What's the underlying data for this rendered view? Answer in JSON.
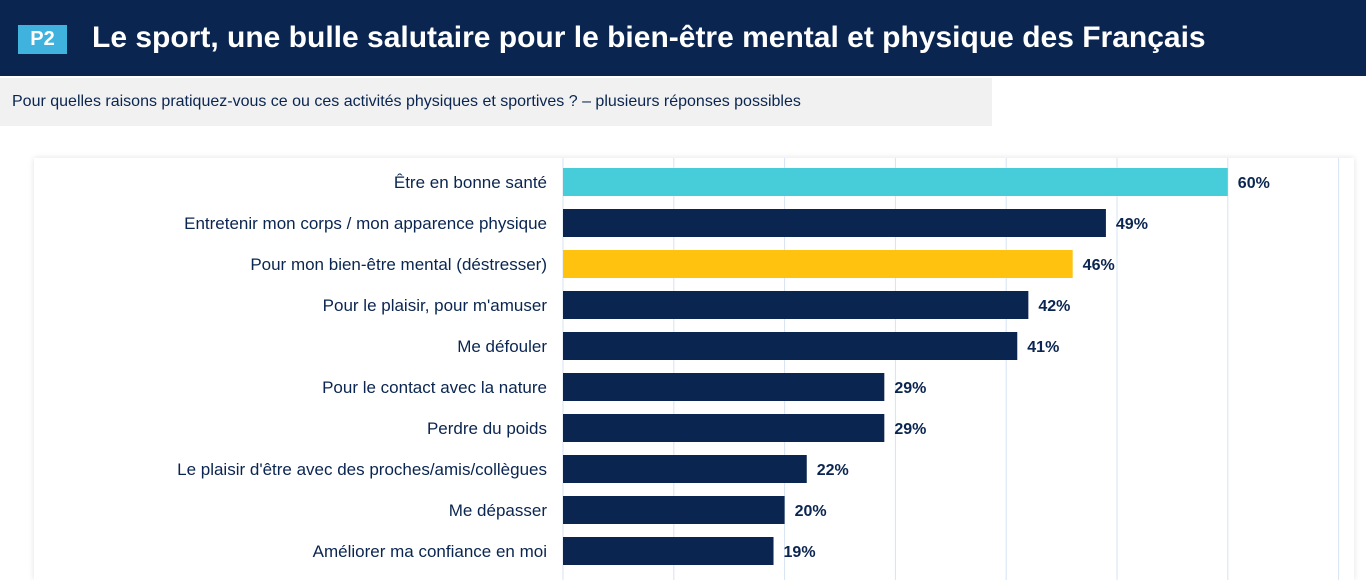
{
  "header": {
    "badge": "P2",
    "title": "Le sport, une bulle salutaire pour le bien-être mental et physique des Français"
  },
  "subtitle": "Pour quelles raisons pratiquez-vous ce ou ces activités physiques et sportives ? – plusieurs réponses possibles",
  "colors": {
    "header_bg": "#0a2550",
    "badge_bg": "#3fb3dd",
    "bar_default": "#0a2550",
    "bar_highlight_1": "#47cdd9",
    "bar_highlight_2": "#ffc20e",
    "gridline": "#d6e3f2"
  },
  "chart_data": {
    "type": "bar",
    "orientation": "horizontal",
    "unit": "%",
    "xlim": [
      0,
      70
    ],
    "grid": true,
    "categories": [
      "Être en bonne santé",
      "Entretenir mon corps / mon apparence physique",
      "Pour mon bien-être mental (déstresser)",
      "Pour le plaisir, pour m'amuser",
      "Me défouler",
      "Pour le contact avec la nature",
      "Perdre du poids",
      "Le plaisir d'être avec des proches/amis/collègues",
      "Me dépasser",
      "Améliorer ma confiance en moi"
    ],
    "values": [
      60,
      49,
      46,
      42,
      41,
      29,
      29,
      22,
      20,
      19
    ],
    "value_labels": [
      "60%",
      "49%",
      "46%",
      "42%",
      "41%",
      "29%",
      "29%",
      "22%",
      "20%",
      "19%"
    ],
    "bar_colors": [
      "#47cdd9",
      "#0a2550",
      "#ffc20e",
      "#0a2550",
      "#0a2550",
      "#0a2550",
      "#0a2550",
      "#0a2550",
      "#0a2550",
      "#0a2550"
    ]
  }
}
